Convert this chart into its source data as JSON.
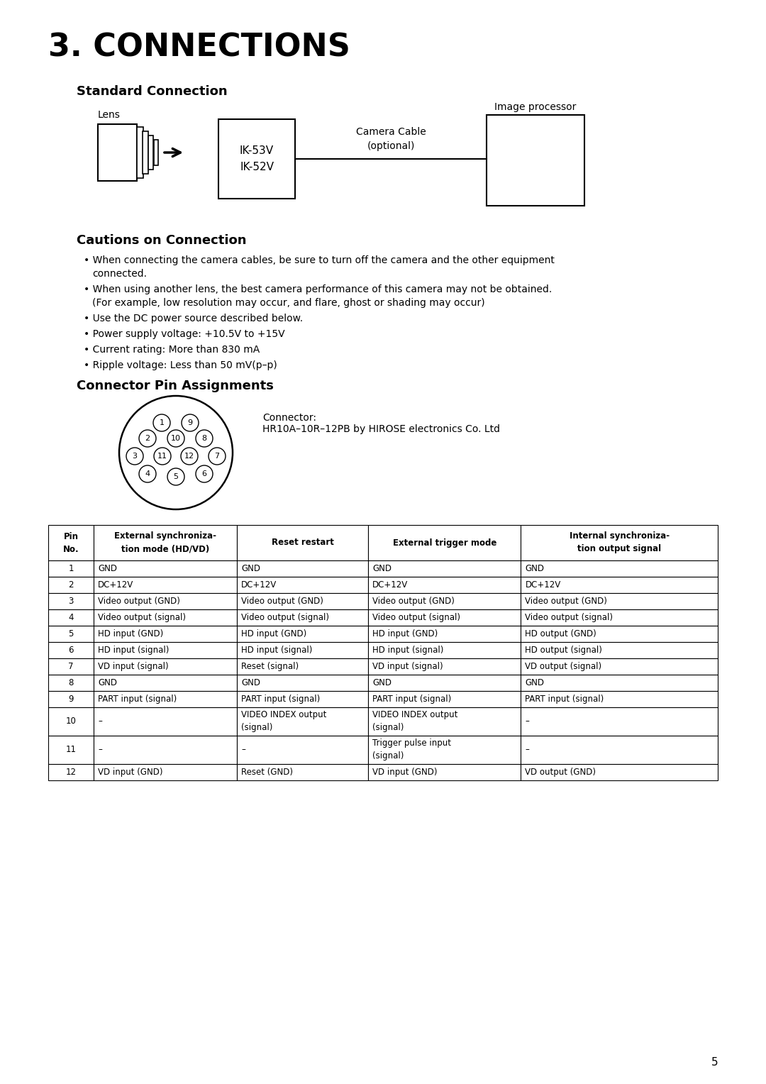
{
  "title": "3. CONNECTIONS",
  "bg_color": "#ffffff",
  "section1_title": "Standard Connection",
  "section2_title": "Cautions on Connection",
  "cautions": [
    [
      "When connecting the camera cables, be sure to turn off the camera and the other equipment",
      "connected."
    ],
    [
      "When using another lens, the best camera performance of this camera may not be obtained.",
      "(For example, low resolution may occur, and flare, ghost or shading may occur)"
    ],
    [
      "Use the DC power source described below."
    ],
    [
      "Power supply voltage: +10.5V to +15V"
    ],
    [
      "Current rating: More than 830 mA"
    ],
    [
      "Ripple voltage: Less than 50 mV(p–p)"
    ]
  ],
  "section3_title": "Connector Pin Assignments",
  "connector_label": "Connector:",
  "connector_model": "HR10A–10R–12PB by HIROSE electronics Co. Ltd",
  "table_headers": [
    "Pin\nNo.",
    "External synchroniza-\ntion mode (HD/VD)",
    "Reset restart",
    "External trigger mode",
    "Internal synchroniza-\ntion output signal"
  ],
  "table_data": [
    [
      "1",
      "GND",
      "GND",
      "GND",
      "GND"
    ],
    [
      "2",
      "DC+12V",
      "DC+12V",
      "DC+12V",
      "DC+12V"
    ],
    [
      "3",
      "Video output (GND)",
      "Video output (GND)",
      "Video output (GND)",
      "Video output (GND)"
    ],
    [
      "4",
      "Video output (signal)",
      "Video output (signal)",
      "Video output (signal)",
      "Video output (signal)"
    ],
    [
      "5",
      "HD input (GND)",
      "HD input (GND)",
      "HD input (GND)",
      "HD output (GND)"
    ],
    [
      "6",
      "HD input (signal)",
      "HD input (signal)",
      "HD input (signal)",
      "HD output (signal)"
    ],
    [
      "7",
      "VD input (signal)",
      "Reset (signal)",
      "VD input (signal)",
      "VD output (signal)"
    ],
    [
      "8",
      "GND",
      "GND",
      "GND",
      "GND"
    ],
    [
      "9",
      "PART input (signal)",
      "PART input (signal)",
      "PART input (signal)",
      "PART input (signal)"
    ],
    [
      "10",
      "–",
      "VIDEO INDEX output\n(signal)",
      "VIDEO INDEX output\n(signal)",
      "–"
    ],
    [
      "11",
      "–",
      "–",
      "Trigger pulse input\n(signal)",
      "–"
    ],
    [
      "12",
      "VD input (GND)",
      "Reset (GND)",
      "VD input (GND)",
      "VD output (GND)"
    ]
  ],
  "page_number": "5",
  "lens_label": "Lens",
  "camera_label": "IK-53V\nIK-52V",
  "cable_label": "Camera Cable\n(optional)",
  "img_proc_label": "Image processor"
}
